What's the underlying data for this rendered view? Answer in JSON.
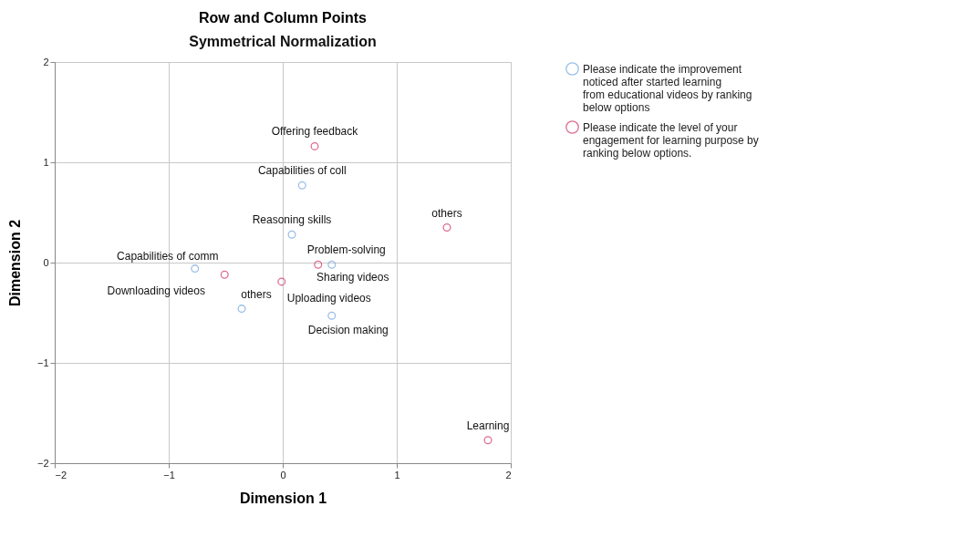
{
  "chart_data": {
    "type": "scatter",
    "title": "Row and Column Points",
    "subtitle": "Symmetrical Normalization",
    "xlabel": "Dimension 1",
    "ylabel": "Dimension 2",
    "xlim": [
      -2,
      2
    ],
    "ylim": [
      -2,
      2
    ],
    "xticks": [
      -2,
      -1,
      0,
      1,
      2
    ],
    "yticks": [
      -2,
      -1,
      0,
      1,
      2
    ],
    "grid": true,
    "legend": "top right",
    "marker": "circle",
    "series": [
      {
        "name": "Please indicate the improvement noticed after started learning from educational videos by ranking below options",
        "color": "#6fa3dc",
        "x": [
          0.17,
          0.08,
          0.43,
          -0.77,
          -0.36,
          0.43
        ],
        "values": [
          0.77,
          0.28,
          -0.02,
          -0.06,
          -0.46,
          -0.53
        ]
      },
      {
        "name": "Please indicate the level of your engagement for learning purpose by ranking below options.",
        "color": "#cf2f5e",
        "x": [
          0.28,
          1.44,
          -0.51,
          -0.01,
          0.31,
          1.8
        ],
        "values": [
          1.16,
          0.35,
          -0.12,
          -0.19,
          -0.02,
          -1.77
        ]
      }
    ],
    "annotations": [
      {
        "text": "Capabilities of coll",
        "x": 0.17,
        "y": 0.77
      },
      {
        "text": "Reasoning skills",
        "x": 0.08,
        "y": 0.28
      },
      {
        "text": "Problem-solving",
        "x": 0.43,
        "y": -0.02
      },
      {
        "text": "Capabilities of comm",
        "x": -0.77,
        "y": -0.06
      },
      {
        "text": "others",
        "x": -0.36,
        "y": -0.46
      },
      {
        "text": "Decision making",
        "x": 0.43,
        "y": -0.53
      },
      {
        "text": "Offering feedback",
        "x": 0.28,
        "y": 1.16
      },
      {
        "text": "others",
        "x": 1.44,
        "y": 0.35
      },
      {
        "text": "Downloading  videos",
        "x": -0.51,
        "y": -0.12
      },
      {
        "text": "Uploading videos",
        "x": -0.01,
        "y": -0.19
      },
      {
        "text": "Sharing videos",
        "x": 0.31,
        "y": -0.02
      },
      {
        "text": "Learning",
        "x": 1.8,
        "y": -1.77
      }
    ]
  }
}
